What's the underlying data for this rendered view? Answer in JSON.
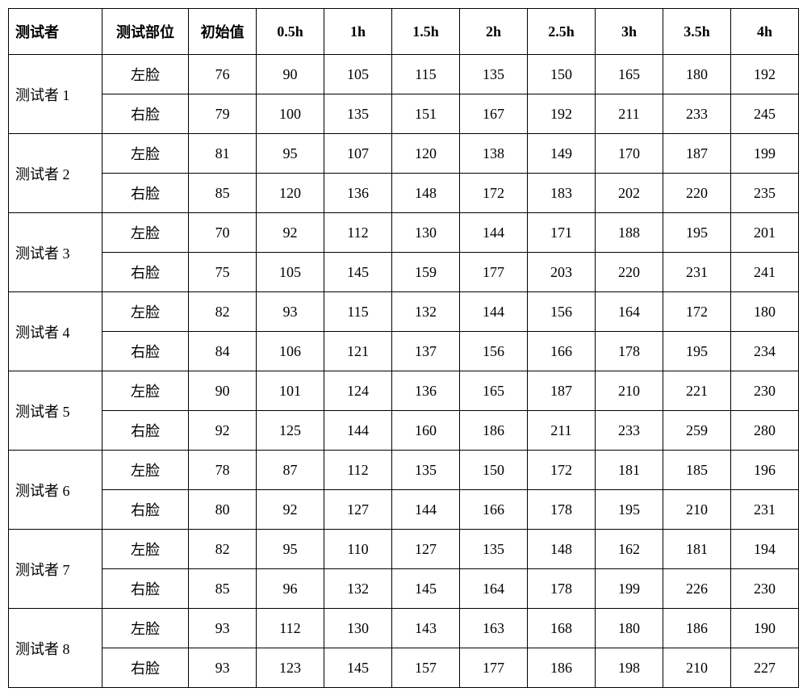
{
  "table": {
    "headers": [
      "测试者",
      "测试部位",
      "初始值",
      "0.5h",
      "1h",
      "1.5h",
      "2h",
      "2.5h",
      "3h",
      "3.5h",
      "4h"
    ],
    "column_classes": [
      "col-tester",
      "col-part",
      "col-val",
      "col-val",
      "col-val",
      "col-val",
      "col-val",
      "col-val",
      "col-val",
      "col-val",
      "col-val"
    ],
    "groups": [
      {
        "tester": "测试者 1",
        "rows": [
          {
            "part": "左脸",
            "values": [
              76,
              90,
              105,
              115,
              135,
              150,
              165,
              180,
              192
            ]
          },
          {
            "part": "右脸",
            "values": [
              79,
              100,
              135,
              151,
              167,
              192,
              211,
              233,
              245
            ]
          }
        ]
      },
      {
        "tester": "测试者 2",
        "rows": [
          {
            "part": "左脸",
            "values": [
              81,
              95,
              107,
              120,
              138,
              149,
              170,
              187,
              199
            ]
          },
          {
            "part": "右脸",
            "values": [
              85,
              120,
              136,
              148,
              172,
              183,
              202,
              220,
              235
            ]
          }
        ]
      },
      {
        "tester": "测试者 3",
        "rows": [
          {
            "part": "左脸",
            "values": [
              70,
              92,
              112,
              130,
              144,
              171,
              188,
              195,
              201
            ]
          },
          {
            "part": "右脸",
            "values": [
              75,
              105,
              145,
              159,
              177,
              203,
              220,
              231,
              241
            ]
          }
        ]
      },
      {
        "tester": "测试者 4",
        "rows": [
          {
            "part": "左脸",
            "values": [
              82,
              93,
              115,
              132,
              144,
              156,
              164,
              172,
              180
            ]
          },
          {
            "part": "右脸",
            "values": [
              84,
              106,
              121,
              137,
              156,
              166,
              178,
              195,
              234
            ]
          }
        ]
      },
      {
        "tester": "测试者 5",
        "rows": [
          {
            "part": "左脸",
            "values": [
              90,
              101,
              124,
              136,
              165,
              187,
              210,
              221,
              230
            ]
          },
          {
            "part": "右脸",
            "values": [
              92,
              125,
              144,
              160,
              186,
              211,
              233,
              259,
              280
            ]
          }
        ]
      },
      {
        "tester": "测试者 6",
        "rows": [
          {
            "part": "左脸",
            "values": [
              78,
              87,
              112,
              135,
              150,
              172,
              181,
              185,
              196
            ]
          },
          {
            "part": "右脸",
            "values": [
              80,
              92,
              127,
              144,
              166,
              178,
              195,
              210,
              231
            ]
          }
        ]
      },
      {
        "tester": "测试者 7",
        "rows": [
          {
            "part": "左脸",
            "values": [
              82,
              95,
              110,
              127,
              135,
              148,
              162,
              181,
              194
            ]
          },
          {
            "part": "右脸",
            "values": [
              85,
              96,
              132,
              145,
              164,
              178,
              199,
              226,
              230
            ]
          }
        ]
      },
      {
        "tester": "测试者 8",
        "rows": [
          {
            "part": "左脸",
            "values": [
              93,
              112,
              130,
              143,
              163,
              168,
              180,
              186,
              190
            ]
          },
          {
            "part": "右脸",
            "values": [
              93,
              123,
              145,
              157,
              177,
              186,
              198,
              210,
              227
            ]
          }
        ]
      }
    ],
    "border_color": "#000000",
    "background_color": "#ffffff",
    "header_font_weight": "bold",
    "cell_font_size": 18
  }
}
